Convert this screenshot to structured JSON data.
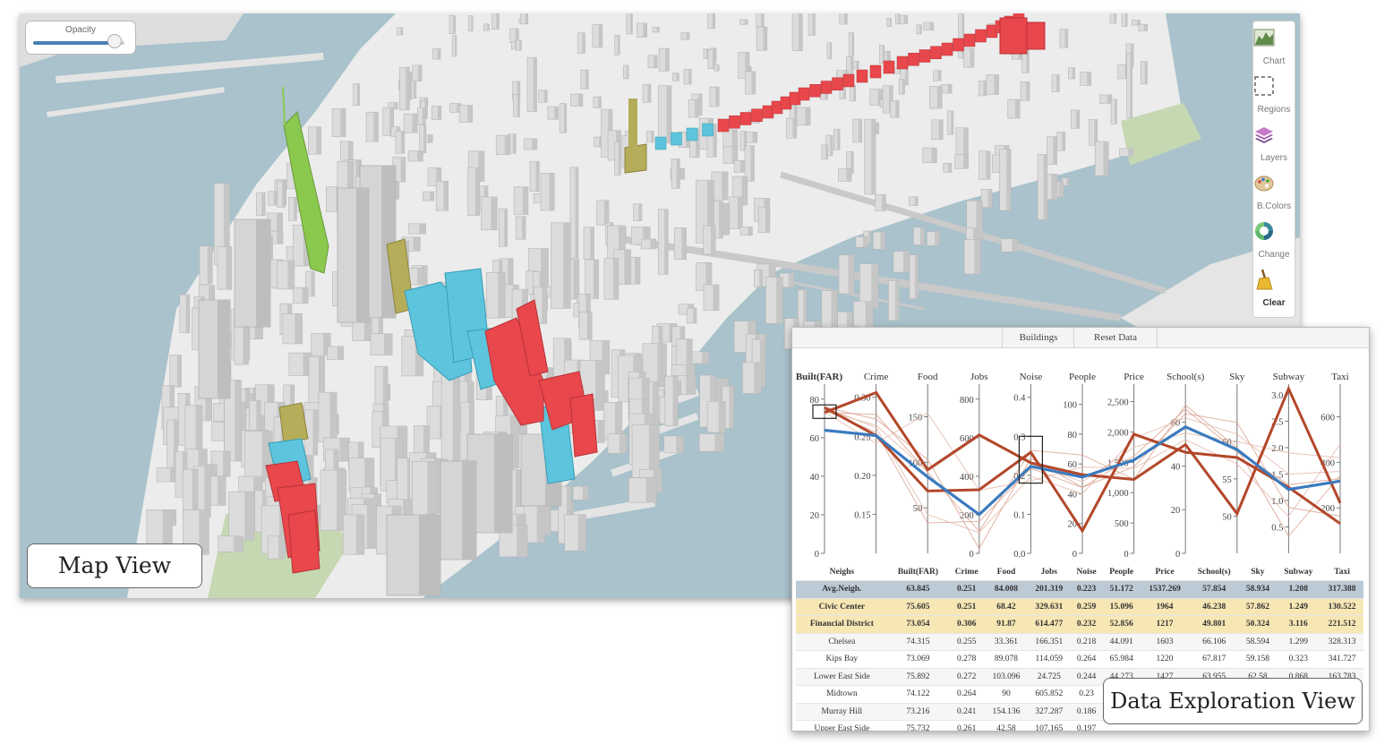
{
  "map_view": {
    "label": "Map View",
    "opacity_label": "Opacity",
    "opacity_value": 0.88,
    "toolbar": [
      {
        "label": "Chart",
        "icon": "chart-icon"
      },
      {
        "label": "Regions",
        "icon": "regions-icon"
      },
      {
        "label": "Layers",
        "icon": "layers-icon"
      },
      {
        "label": "B.Colors",
        "icon": "palette-icon"
      },
      {
        "label": "Change",
        "icon": "change-icon"
      },
      {
        "label": "Clear",
        "icon": "broom-icon"
      }
    ],
    "colors": {
      "water": "#a9c2cb",
      "land": "#eeeeee",
      "park": "#c6d8b2",
      "building": "#d9d9d9",
      "red": "#e8474c",
      "cyan": "#5cc4dc",
      "olive": "#b5ad5a",
      "green": "#8ac84e"
    }
  },
  "data_view": {
    "label": "Data Exploration View",
    "tabs": [
      "Buildings",
      "Reset Data"
    ],
    "table": {
      "columns": [
        "Neighs",
        "Built(FAR)",
        "Crime",
        "Food",
        "Jobs",
        "Noise",
        "People",
        "Price",
        "School(s)",
        "Sky",
        "Subway",
        "Taxi"
      ],
      "rows": [
        {
          "kind": "avg",
          "cells": [
            "Avg.Neigh.",
            "63.845",
            "0.251",
            "84.008",
            "201.319",
            "0.223",
            "51.172",
            "1537.269",
            "57.854",
            "58.934",
            "1.208",
            "317.388"
          ]
        },
        {
          "kind": "sel",
          "cells": [
            "Civic Center",
            "75.605",
            "0.251",
            "68.42",
            "329.631",
            "0.259",
            "15.096",
            "1964",
            "46.238",
            "57.862",
            "1.249",
            "130.522"
          ]
        },
        {
          "kind": "sel",
          "cells": [
            "Financial District",
            "73.054",
            "0.306",
            "91.87",
            "614.477",
            "0.232",
            "52.856",
            "1217",
            "49.801",
            "50.324",
            "3.116",
            "221.512"
          ]
        },
        {
          "kind": "plain",
          "cells": [
            "Chelsea",
            "74.315",
            "0.255",
            "33.361",
            "166.351",
            "0.218",
            "44.091",
            "1603",
            "66.106",
            "58.594",
            "1.299",
            "328.313"
          ]
        },
        {
          "kind": "plain",
          "cells": [
            "Kips Bay",
            "73.069",
            "0.278",
            "89.078",
            "114.059",
            "0.264",
            "65.984",
            "1220",
            "67.817",
            "59.158",
            "0.323",
            "341.727"
          ]
        },
        {
          "kind": "plain",
          "cells": [
            "Lower East Side",
            "75.892",
            "0.272",
            "103.096",
            "24.725",
            "0.244",
            "44.273",
            "1427",
            "63.955",
            "62.58",
            "0.868",
            "163.783"
          ]
        },
        {
          "kind": "plain",
          "cells": [
            "Midtown",
            "74.122",
            "0.264",
            "90",
            "605.852",
            "0.23",
            "",
            "",
            "",
            "",
            "",
            ""
          ]
        },
        {
          "kind": "plain",
          "cells": [
            "Murray Hill",
            "73.216",
            "0.241",
            "154.136",
            "327.287",
            "0.186",
            "",
            "",
            "",
            "",
            "",
            ""
          ]
        },
        {
          "kind": "plain",
          "cells": [
            "Upper East Side",
            "75.732",
            "0.261",
            "42.58",
            "107.165",
            "0.197",
            "",
            "",
            "",
            "",
            "",
            ""
          ]
        }
      ]
    },
    "chart_data": {
      "type": "parallel-coordinates",
      "axes": [
        {
          "name": "Built(FAR)",
          "min": 0,
          "max": 85,
          "ticks": [
            0,
            20,
            40,
            60,
            80
          ],
          "tick_labels": [
            "0",
            "20",
            "40",
            "60",
            "80"
          ]
        },
        {
          "name": "Crime",
          "min": 0.1,
          "max": 0.31,
          "ticks": [
            0.15,
            0.2,
            0.25,
            0.3
          ],
          "tick_labels": [
            "0.15",
            "0.20",
            "0.25",
            "0.30"
          ]
        },
        {
          "name": "Food",
          "min": 0,
          "max": 180,
          "ticks": [
            50,
            100,
            150
          ],
          "tick_labels": [
            "50",
            "100",
            "150"
          ]
        },
        {
          "name": "Jobs",
          "min": 0,
          "max": 850,
          "ticks": [
            0,
            200,
            400,
            600,
            800
          ],
          "tick_labels": [
            "0",
            "200",
            "400",
            "600",
            "800"
          ]
        },
        {
          "name": "Noise",
          "min": 0,
          "max": 0.42,
          "ticks": [
            0,
            0.1,
            0.2,
            0.3,
            0.4
          ],
          "tick_labels": [
            "0.0",
            "0.1",
            "0.2",
            "0.3",
            "0.4"
          ]
        },
        {
          "name": "People",
          "min": 0,
          "max": 110,
          "ticks": [
            0,
            20,
            40,
            60,
            80,
            100
          ],
          "tick_labels": [
            "0",
            "20",
            "40",
            "60",
            "80",
            "100"
          ]
        },
        {
          "name": "Price",
          "min": 0,
          "max": 2700,
          "ticks": [
            0,
            500,
            1000,
            1500,
            2000,
            2500
          ],
          "tick_labels": [
            "0",
            "500",
            "1,000",
            "1,500",
            "2,000",
            "2,500"
          ]
        },
        {
          "name": "School(s)",
          "min": 0,
          "max": 75,
          "ticks": [
            0,
            20,
            40,
            60
          ],
          "tick_labels": [
            "0",
            "20",
            "40",
            "60"
          ]
        },
        {
          "name": "Sky",
          "min": 45,
          "max": 67,
          "ticks": [
            50,
            55,
            60
          ],
          "tick_labels": [
            "50",
            "55",
            "60"
          ]
        },
        {
          "name": "Subway",
          "min": 0,
          "max": 3.1,
          "ticks": [
            0.5,
            1,
            1.5,
            2,
            2.5,
            3
          ],
          "tick_labels": [
            "0.5",
            "1.0",
            "1.5",
            "2.0",
            "2.5",
            "3.0"
          ]
        },
        {
          "name": "Taxi",
          "min": 0,
          "max": 720,
          "ticks": [
            200,
            400,
            600
          ],
          "tick_labels": [
            "200",
            "400",
            "600"
          ]
        }
      ],
      "series": [
        {
          "name": "Avg.Neigh.",
          "color": "#3b7bbf",
          "width": 3.2,
          "values": [
            63.845,
            0.251,
            84.008,
            201.319,
            0.223,
            51.172,
            1537.269,
            57.854,
            58.934,
            1.208,
            317.388
          ]
        },
        {
          "color": "#b3472a",
          "width": 3,
          "values": [
            75.605,
            0.251,
            68.42,
            329.631,
            0.259,
            15.096,
            1964,
            46.238,
            57.862,
            1.249,
            130.522
          ]
        },
        {
          "color": "#b3472a",
          "width": 3,
          "values": [
            73.054,
            0.306,
            91.87,
            614.477,
            0.232,
            52.856,
            1217,
            49.801,
            50.324,
            3.116,
            221.512
          ]
        },
        {
          "color": "#d9a08f",
          "width": 1,
          "values": [
            74.315,
            0.255,
            33.361,
            166.351,
            0.218,
            44.091,
            1603,
            66.106,
            58.594,
            1.299,
            328.313
          ]
        },
        {
          "color": "#d9a08f",
          "width": 1,
          "values": [
            73.069,
            0.278,
            89.078,
            114.059,
            0.264,
            65.984,
            1220,
            67.817,
            59.158,
            0.323,
            341.727
          ]
        },
        {
          "color": "#d9a08f",
          "width": 1,
          "values": [
            75.892,
            0.272,
            103.096,
            24.725,
            0.244,
            44.273,
            1427,
            63.955,
            62.58,
            0.868,
            163.783
          ]
        },
        {
          "color": "#e3b8aa",
          "width": 1,
          "values": [
            74.122,
            0.264,
            90,
            605.852,
            0.23,
            48,
            1750,
            55,
            60,
            1.9,
            420
          ]
        },
        {
          "color": "#e3b8aa",
          "width": 1,
          "values": [
            73.216,
            0.241,
            154.136,
            327.287,
            0.186,
            58,
            1400,
            52,
            57,
            0.7,
            480
          ]
        },
        {
          "color": "#e3b8aa",
          "width": 1,
          "values": [
            75.732,
            0.261,
            42.58,
            107.165,
            0.197,
            40,
            1900,
            62,
            61,
            1.5,
            360
          ]
        }
      ],
      "brushes": [
        {
          "axis": "Built(FAR)",
          "range": [
            70,
            77
          ]
        },
        {
          "axis": "Noise",
          "range": [
            0.18,
            0.3
          ]
        }
      ]
    }
  }
}
